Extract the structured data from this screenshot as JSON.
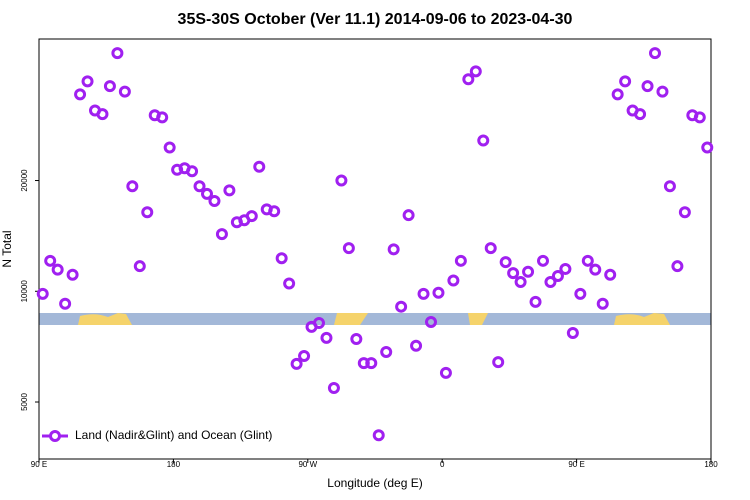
{
  "chart_data": {
    "type": "scatter",
    "title": "35S-30S October (Ver 11.1)   2014-09-06 to 2023-04-30",
    "x_label": "Longitude (deg E)",
    "y_label": "N Total",
    "log_y": true,
    "xlim": [
      90,
      540
    ],
    "xticks": [
      {
        "value": 90,
        "label": "90 E"
      },
      180,
      {
        "value": 270,
        "label": "90 W"
      },
      {
        "value": 360,
        "label": "0"
      },
      {
        "value": 450,
        "label": "90 E"
      },
      {
        "value": 540,
        "label": "180"
      }
    ],
    "ylim": [
      3500,
      48500
    ],
    "yticks": [
      5000,
      10000,
      20000
    ],
    "legend": "bottom-left",
    "series": [
      {
        "name": "Land (Nadir&Glint) and Ocean (Glint)",
        "color": "#a020f0",
        "x": [
          92.5,
          97.5,
          102.5,
          107.5,
          112.5,
          117.5,
          122.5,
          127.5,
          132.5,
          137.5,
          142.5,
          147.5,
          152.5,
          157.5,
          162.5,
          167.5,
          172.5,
          177.5,
          182.5,
          187.5,
          192.5,
          197.5,
          202.5,
          207.5,
          212.5,
          217.5,
          222.5,
          227.5,
          232.5,
          237.5,
          242.5,
          247.5,
          252.5,
          257.5,
          262.5,
          267.5,
          272.5,
          277.5,
          282.5,
          287.5,
          292.5,
          297.5,
          302.5,
          307.5,
          312.5,
          317.5,
          322.5,
          327.5,
          332.5,
          337.5,
          342.5,
          347.5,
          352.5,
          357.5,
          362.5,
          367.5,
          372.5,
          377.5,
          382.5,
          387.5,
          392.5,
          397.5,
          402.5,
          407.5,
          412.5,
          417.5,
          422.5,
          427.5,
          432.5,
          437.5,
          442.5,
          447.5,
          452.5,
          457.5,
          462.5,
          467.5,
          472.5,
          477.5,
          482.5,
          487.5,
          492.5,
          497.5,
          502.5,
          507.5,
          512.5,
          517.5,
          522.5,
          527.5,
          532.5,
          537.5
        ],
        "values": [
          9840,
          12100,
          11450,
          9250,
          11090,
          34300,
          37200,
          31000,
          30300,
          36100,
          44400,
          34900,
          19300,
          11700,
          16400,
          30100,
          29700,
          24600,
          21400,
          21600,
          21200,
          19300,
          18400,
          17600,
          14300,
          18800,
          15400,
          15600,
          16000,
          21800,
          16700,
          16500,
          12300,
          10500,
          6350,
          6670,
          8000,
          8200,
          7470,
          5460,
          20000,
          13100,
          7420,
          6380,
          6380,
          4060,
          6840,
          13000,
          9080,
          16100,
          7110,
          9840,
          8250,
          9910,
          6000,
          10700,
          12100,
          37700,
          39600,
          25700,
          13100,
          6420,
          12000,
          11200,
          10600,
          11300,
          9360,
          12100,
          10600,
          11000,
          11500,
          7700,
          9840,
          12100,
          11450,
          9250,
          11090,
          34300,
          37200,
          31000,
          30300,
          36100,
          44400,
          34900,
          19300,
          11700,
          16400,
          30100,
          29700,
          24600
        ]
      }
    ]
  }
}
